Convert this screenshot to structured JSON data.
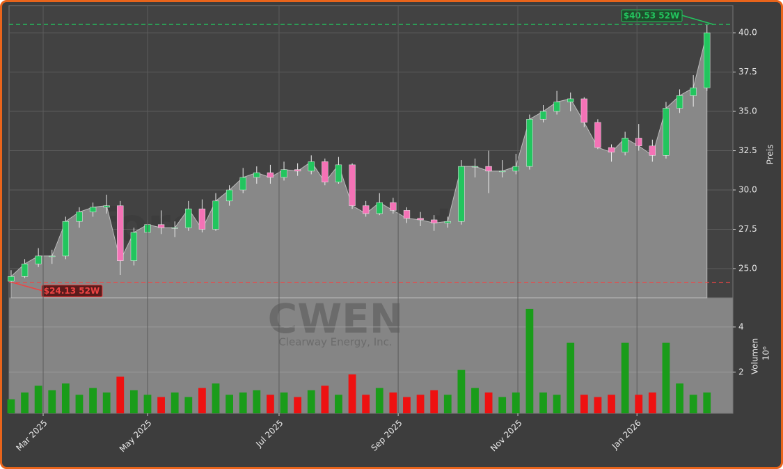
{
  "chart_data": [
    {
      "type": "candlestick",
      "ylabel": "Preis",
      "x": [
        0,
        1,
        2,
        3,
        4,
        5,
        6,
        7,
        8,
        9,
        10,
        11,
        12,
        13,
        14,
        15,
        16,
        17,
        18,
        19,
        20,
        21,
        22,
        23,
        24,
        25,
        26,
        27,
        28,
        29,
        30,
        31,
        32,
        33,
        34,
        35,
        36,
        37,
        38,
        39,
        40,
        41,
        42,
        43,
        44,
        45,
        46,
        47,
        48,
        49,
        50,
        51
      ],
      "open": [
        24.2,
        24.5,
        25.3,
        25.8,
        25.8,
        28.0,
        28.6,
        28.9,
        29.0,
        25.5,
        27.3,
        27.8,
        27.6,
        27.6,
        28.8,
        27.5,
        29.3,
        30.0,
        30.8,
        31.1,
        30.8,
        31.3,
        31.2,
        31.8,
        30.5,
        31.6,
        29.0,
        28.5,
        29.2,
        28.7,
        28.2,
        28.1,
        27.9,
        28.0,
        31.5,
        31.5,
        31.2,
        31.2,
        31.5,
        34.5,
        35.0,
        35.6,
        35.8,
        34.3,
        32.7,
        32.4,
        33.3,
        32.8,
        32.2,
        35.2,
        36.0,
        36.5
      ],
      "high": [
        24.9,
        25.6,
        26.3,
        26.2,
        28.3,
        28.9,
        29.2,
        29.7,
        29.3,
        27.6,
        28.1,
        28.7,
        28.0,
        29.3,
        29.4,
        29.8,
        30.3,
        31.4,
        31.5,
        31.6,
        31.8,
        31.7,
        32.2,
        32.0,
        32.1,
        31.7,
        29.3,
        29.8,
        29.5,
        28.9,
        28.6,
        28.4,
        28.3,
        31.9,
        32.0,
        32.5,
        31.9,
        32.3,
        34.8,
        35.4,
        36.3,
        36.2,
        35.9,
        34.5,
        32.9,
        33.7,
        34.2,
        33.2,
        35.6,
        36.4,
        37.3,
        40.53
      ],
      "low": [
        24.1,
        24.4,
        25.1,
        25.3,
        25.6,
        27.6,
        28.3,
        28.5,
        24.6,
        25.2,
        26.0,
        27.2,
        27.0,
        27.4,
        27.3,
        27.4,
        29.0,
        29.8,
        30.4,
        30.4,
        30.6,
        30.9,
        31.0,
        30.3,
        30.4,
        28.8,
        28.3,
        28.4,
        28.5,
        27.9,
        27.7,
        27.4,
        27.6,
        27.8,
        30.8,
        29.8,
        30.8,
        31.0,
        31.3,
        34.3,
        34.8,
        35.0,
        34.0,
        32.6,
        31.8,
        32.2,
        32.5,
        31.8,
        32.0,
        34.9,
        35.3,
        36.3
      ],
      "close": [
        24.5,
        25.3,
        25.8,
        25.8,
        28.0,
        28.6,
        28.9,
        29.0,
        25.5,
        27.3,
        27.8,
        27.6,
        27.6,
        28.8,
        27.5,
        29.3,
        30.0,
        30.8,
        31.1,
        30.8,
        31.3,
        31.2,
        31.8,
        30.5,
        31.6,
        29.0,
        28.5,
        29.2,
        28.7,
        28.2,
        28.1,
        27.9,
        28.0,
        31.5,
        31.5,
        31.2,
        31.2,
        31.5,
        34.5,
        35.0,
        35.6,
        35.8,
        34.3,
        32.7,
        32.4,
        33.3,
        32.8,
        32.2,
        35.2,
        36.0,
        36.5,
        40.0
      ],
      "up_color": "#22c55e",
      "down_color": "#f472b6",
      "area_color": "#888888",
      "xlim": [
        -0.15,
        52.9
      ],
      "ylim": [
        23.14,
        41.73
      ],
      "yticks": [
        {
          "value": 25,
          "label": "25.0"
        },
        {
          "value": 27.5,
          "label": "27.5"
        },
        {
          "value": 30,
          "label": "30.0"
        },
        {
          "value": 32.5,
          "label": "32.5"
        },
        {
          "value": 35,
          "label": "35.0"
        },
        {
          "value": 37.5,
          "label": "37.5"
        },
        {
          "value": 40,
          "label": "40.0"
        }
      ],
      "grid": true,
      "annotations": [
        {
          "value": 40.53,
          "label": "$40.53 52W",
          "color": "#22c55e"
        },
        {
          "value": 24.13,
          "label": "$24.13 52W",
          "color": "#ef4444"
        }
      ],
      "watermark": "forexsignale.trade",
      "symbol": "CWEN",
      "company": "Clearway Energy, Inc."
    },
    {
      "type": "bar",
      "ylabel": "Volumen",
      "multiplier": "10⁶",
      "values": [
        0.8,
        1.1,
        1.4,
        1.2,
        1.5,
        1.0,
        1.3,
        1.1,
        1.8,
        1.2,
        1.0,
        0.9,
        1.1,
        0.9,
        1.3,
        1.5,
        1.0,
        1.1,
        1.2,
        1.0,
        1.1,
        0.9,
        1.2,
        1.4,
        1.0,
        1.9,
        1.0,
        1.3,
        1.1,
        0.9,
        1.0,
        1.2,
        1.0,
        2.1,
        1.3,
        1.1,
        0.9,
        1.1,
        4.8,
        1.1,
        1.0,
        3.3,
        1.0,
        0.9,
        1.0,
        3.3,
        1.0,
        1.1,
        3.3,
        1.5,
        1.0,
        1.1
      ],
      "up_color": "#1a9c1a",
      "down_color": "#ee1111",
      "ylim": [
        0.18,
        5.29
      ],
      "yticks": [
        2,
        4
      ],
      "grid": true,
      "xticks": [
        {
          "value": 2.35,
          "label": "Mar 2025"
        },
        {
          "value": 10.0,
          "label": "May 2025"
        },
        {
          "value": 19.64,
          "label": "Jul 2025"
        },
        {
          "value": 28.37,
          "label": "Sep 2025"
        },
        {
          "value": 37.14,
          "label": "Nov 2025"
        },
        {
          "value": 45.87,
          "label": "Jan 2026"
        }
      ]
    }
  ]
}
